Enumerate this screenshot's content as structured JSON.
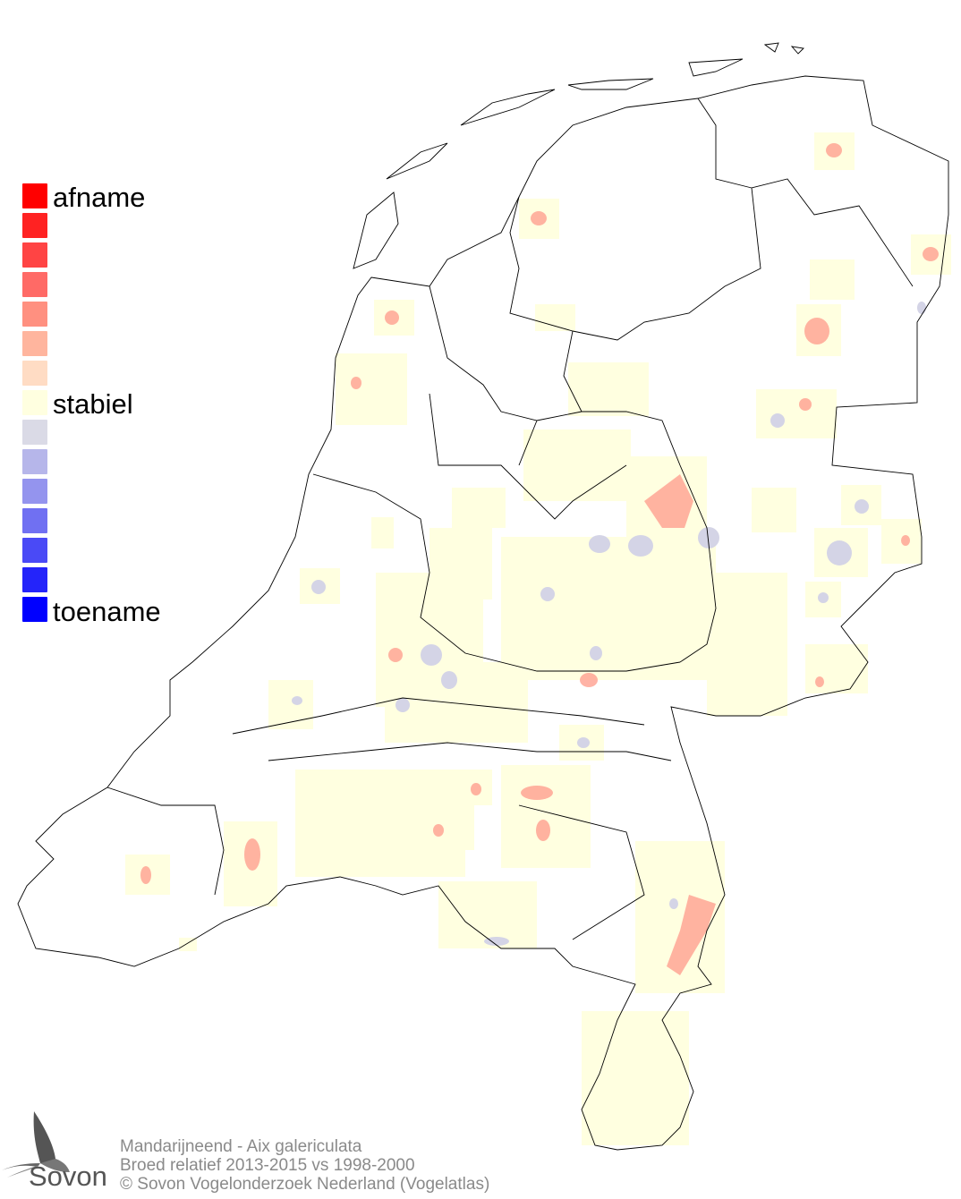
{
  "legend": {
    "labels": {
      "top": "afname",
      "middle": "stabiel",
      "bottom": "toename"
    },
    "colors": [
      "#ff0000",
      "#ff2222",
      "#ff4444",
      "#ff6a66",
      "#ff9080",
      "#ffb59e",
      "#ffdcc4",
      "#ffffe0",
      "#dadae6",
      "#b6b6ea",
      "#9494ee",
      "#7070f2",
      "#4a4af6",
      "#2424fa",
      "#0000ff"
    ]
  },
  "colors": {
    "stable": "#ffffe0",
    "decline": "#ffa090",
    "increase": "#d4d4e6",
    "border": "#000000"
  },
  "logo": {
    "text": "Sovon"
  },
  "footer": {
    "line1": "Mandarijneend - Aix galericulata",
    "line2": "Broed relatief 2013-2015 vs 1998-2000",
    "line3": "© Sovon Vogelonderzoek Nederland (Vogelatlas)"
  }
}
